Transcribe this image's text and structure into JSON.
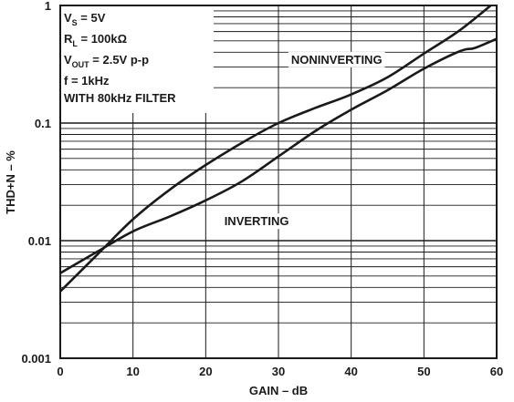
{
  "chart_data": {
    "type": "line",
    "xlabel": "GAIN – dB",
    "ylabel": "THD+N – %",
    "xlim": [
      0,
      60
    ],
    "ylim": [
      0.001,
      1
    ],
    "yscale": "log",
    "grid": true,
    "xticks": [
      0,
      10,
      20,
      30,
      40,
      50,
      60
    ],
    "xtick_labels": [
      "0",
      "10",
      "20",
      "30",
      "40",
      "50",
      "60"
    ],
    "yticks": [
      0.001,
      0.01,
      0.1,
      1
    ],
    "ytick_labels": [
      "0.001",
      "0.01",
      "0.1",
      "1"
    ],
    "conditions": {
      "line1_pre": "V",
      "line1_sub": "S",
      "line1_post": " = 5V",
      "line2_pre": "R",
      "line2_sub": "L",
      "line2_post": " = 100kΩ",
      "line3_pre": "V",
      "line3_sub": "OUT",
      "line3_post": " = 2.5V p-p",
      "line4": "f = 1kHz",
      "line5": "WITH 80kHz FILTER"
    },
    "series": [
      {
        "name": "NONINVERTING",
        "x": [
          0,
          5,
          10,
          15,
          20,
          25,
          30,
          35,
          40,
          45,
          50,
          55,
          60
        ],
        "y": [
          0.0037,
          0.0075,
          0.0152,
          0.027,
          0.044,
          0.068,
          0.1,
          0.134,
          0.175,
          0.245,
          0.39,
          0.62,
          1.1
        ]
      },
      {
        "name": "INVERTING",
        "x": [
          0,
          5,
          10,
          15,
          20,
          25,
          30,
          35,
          40,
          45,
          50,
          55,
          57,
          60
        ],
        "y": [
          0.0053,
          0.008,
          0.012,
          0.016,
          0.022,
          0.032,
          0.052,
          0.085,
          0.13,
          0.19,
          0.29,
          0.41,
          0.435,
          0.52
        ]
      }
    ],
    "annotations": [
      {
        "text": "NONINVERTING",
        "x": 38,
        "y": 0.32
      },
      {
        "text": "INVERTING",
        "x": 27,
        "y": 0.0135
      }
    ]
  }
}
